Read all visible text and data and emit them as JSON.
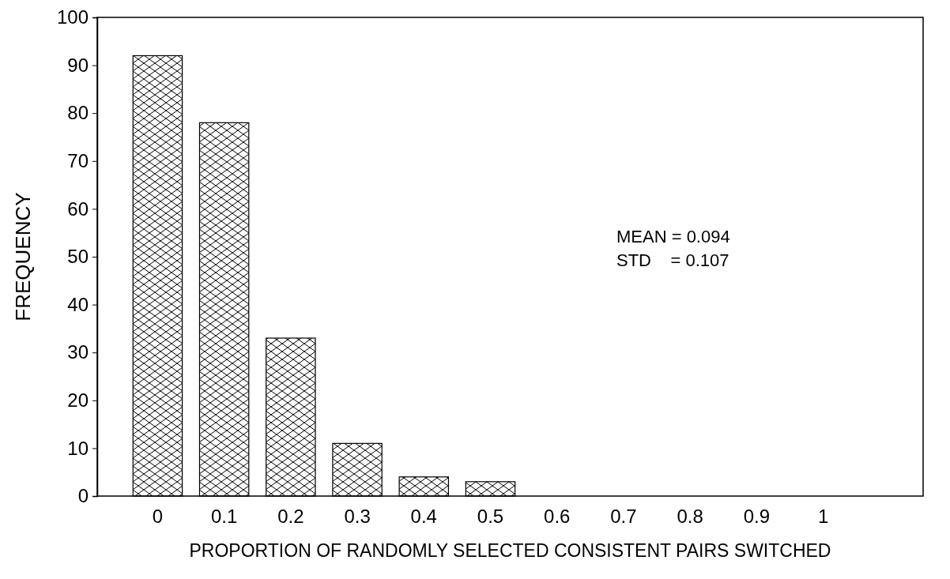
{
  "chart_data": {
    "type": "bar",
    "xlabel": "PROPORTION OF RANDOMLY SELECTED CONSISTENT PAIRS SWITCHED",
    "ylabel": "FREQUENCY",
    "categories": [
      "0",
      "0.1",
      "0.2",
      "0.3",
      "0.4",
      "0.5",
      "0.6",
      "0.7",
      "0.8",
      "0.9",
      "1"
    ],
    "values": [
      92,
      78,
      33,
      11,
      4,
      3,
      0,
      0,
      0,
      0,
      0
    ],
    "color": "#000000",
    "ylim": [
      0,
      100
    ],
    "yticks": [
      0,
      10,
      20,
      30,
      40,
      50,
      60,
      70,
      80,
      90,
      100
    ],
    "annotations": [
      "MEAN = 0.094",
      "STD    = 0.107"
    ]
  }
}
